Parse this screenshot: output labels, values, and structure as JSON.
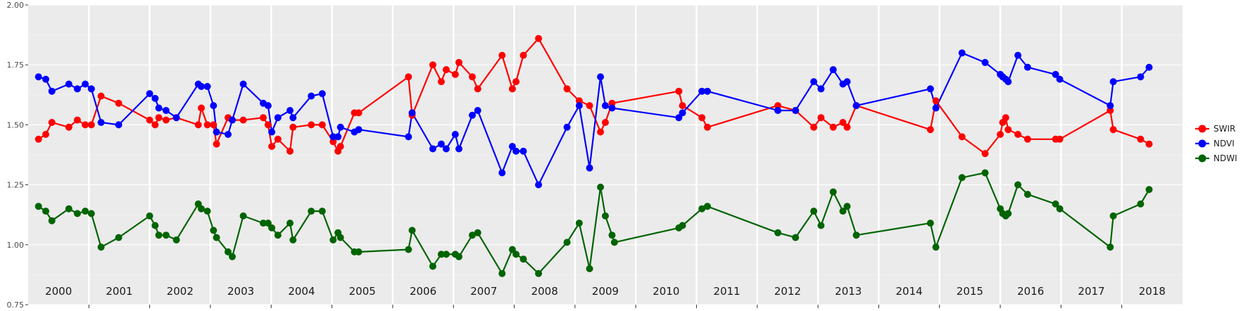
{
  "chart_data": {
    "type": "line",
    "title": "",
    "xlabel": "",
    "ylabel": "",
    "ylim": [
      0.75,
      2.0
    ],
    "xlim": [
      2000.0,
      2019.0
    ],
    "y_ticks": [
      "0.75",
      "1.00",
      "1.25",
      "1.50",
      "1.75",
      "2.00"
    ],
    "year_labels": [
      "2000",
      "2001",
      "2002",
      "2003",
      "2004",
      "2005",
      "2006",
      "2007",
      "2008",
      "2009",
      "2010",
      "2011",
      "2012",
      "2013",
      "2014",
      "2015",
      "2016",
      "2017",
      "2018"
    ],
    "grid": true,
    "panel_background": "#ebebeb",
    "legend_position": "right",
    "series": [
      {
        "name": "SWIR",
        "color": "#ff0000",
        "points": [
          [
            2000.17,
            1.44
          ],
          [
            2000.29,
            1.46
          ],
          [
            2000.39,
            1.51
          ],
          [
            2000.67,
            1.49
          ],
          [
            2000.81,
            1.52
          ],
          [
            2000.94,
            1.5
          ],
          [
            2001.04,
            1.5
          ],
          [
            2001.2,
            1.62
          ],
          [
            2001.49,
            1.59
          ],
          [
            2002.0,
            1.52
          ],
          [
            2002.09,
            1.5
          ],
          [
            2002.15,
            1.53
          ],
          [
            2002.27,
            1.52
          ],
          [
            2002.44,
            1.53
          ],
          [
            2002.8,
            1.5
          ],
          [
            2002.85,
            1.57
          ],
          [
            2002.95,
            1.5
          ],
          [
            2003.05,
            1.5
          ],
          [
            2003.1,
            1.42
          ],
          [
            2003.29,
            1.53
          ],
          [
            2003.36,
            1.52
          ],
          [
            2003.54,
            1.52
          ],
          [
            2003.87,
            1.53
          ],
          [
            2003.95,
            1.5
          ],
          [
            2004.01,
            1.41
          ],
          [
            2004.11,
            1.44
          ],
          [
            2004.31,
            1.39
          ],
          [
            2004.36,
            1.49
          ],
          [
            2004.66,
            1.5
          ],
          [
            2004.84,
            1.5
          ],
          [
            2005.02,
            1.43
          ],
          [
            2005.1,
            1.39
          ],
          [
            2005.14,
            1.41
          ],
          [
            2005.37,
            1.55
          ],
          [
            2005.44,
            1.55
          ],
          [
            2006.26,
            1.7
          ],
          [
            2006.32,
            1.54
          ],
          [
            2006.66,
            1.75
          ],
          [
            2006.8,
            1.68
          ],
          [
            2006.88,
            1.73
          ],
          [
            2007.03,
            1.71
          ],
          [
            2007.09,
            1.76
          ],
          [
            2007.31,
            1.7
          ],
          [
            2007.4,
            1.65
          ],
          [
            2007.8,
            1.79
          ],
          [
            2007.97,
            1.65
          ],
          [
            2008.03,
            1.68
          ],
          [
            2008.15,
            1.79
          ],
          [
            2008.4,
            1.86
          ],
          [
            2008.87,
            1.65
          ],
          [
            2009.07,
            1.6
          ],
          [
            2009.24,
            1.58
          ],
          [
            2009.42,
            1.47
          ],
          [
            2009.5,
            1.51
          ],
          [
            2009.61,
            1.59
          ],
          [
            2010.71,
            1.64
          ],
          [
            2010.77,
            1.58
          ],
          [
            2011.09,
            1.53
          ],
          [
            2011.18,
            1.49
          ],
          [
            2012.34,
            1.58
          ],
          [
            2012.63,
            1.56
          ],
          [
            2012.93,
            1.49
          ],
          [
            2013.05,
            1.53
          ],
          [
            2013.25,
            1.49
          ],
          [
            2013.41,
            1.51
          ],
          [
            2013.48,
            1.49
          ],
          [
            2013.63,
            1.58
          ],
          [
            2014.85,
            1.48
          ],
          [
            2014.94,
            1.6
          ],
          [
            2015.37,
            1.45
          ],
          [
            2015.75,
            1.38
          ],
          [
            2016.0,
            1.46
          ],
          [
            2016.04,
            1.51
          ],
          [
            2016.09,
            1.53
          ],
          [
            2016.13,
            1.48
          ],
          [
            2016.29,
            1.46
          ],
          [
            2016.45,
            1.44
          ],
          [
            2016.91,
            1.44
          ],
          [
            2016.98,
            1.44
          ],
          [
            2017.81,
            1.56
          ],
          [
            2017.86,
            1.48
          ],
          [
            2018.31,
            1.44
          ],
          [
            2018.45,
            1.42
          ]
        ]
      },
      {
        "name": "NDVI",
        "color": "#0000ff",
        "points": [
          [
            2000.17,
            1.7
          ],
          [
            2000.29,
            1.69
          ],
          [
            2000.39,
            1.64
          ],
          [
            2000.67,
            1.67
          ],
          [
            2000.81,
            1.65
          ],
          [
            2000.94,
            1.67
          ],
          [
            2001.04,
            1.65
          ],
          [
            2001.2,
            1.51
          ],
          [
            2001.49,
            1.5
          ],
          [
            2002.0,
            1.63
          ],
          [
            2002.09,
            1.61
          ],
          [
            2002.15,
            1.57
          ],
          [
            2002.27,
            1.56
          ],
          [
            2002.44,
            1.53
          ],
          [
            2002.8,
            1.67
          ],
          [
            2002.85,
            1.66
          ],
          [
            2002.95,
            1.66
          ],
          [
            2003.05,
            1.58
          ],
          [
            2003.1,
            1.47
          ],
          [
            2003.29,
            1.46
          ],
          [
            2003.36,
            1.52
          ],
          [
            2003.54,
            1.67
          ],
          [
            2003.87,
            1.59
          ],
          [
            2003.95,
            1.58
          ],
          [
            2004.01,
            1.47
          ],
          [
            2004.11,
            1.53
          ],
          [
            2004.31,
            1.56
          ],
          [
            2004.36,
            1.53
          ],
          [
            2004.66,
            1.62
          ],
          [
            2004.84,
            1.63
          ],
          [
            2005.02,
            1.45
          ],
          [
            2005.1,
            1.45
          ],
          [
            2005.14,
            1.49
          ],
          [
            2005.37,
            1.47
          ],
          [
            2005.44,
            1.48
          ],
          [
            2006.26,
            1.45
          ],
          [
            2006.32,
            1.55
          ],
          [
            2006.66,
            1.4
          ],
          [
            2006.8,
            1.42
          ],
          [
            2006.88,
            1.4
          ],
          [
            2007.03,
            1.46
          ],
          [
            2007.09,
            1.4
          ],
          [
            2007.31,
            1.54
          ],
          [
            2007.4,
            1.56
          ],
          [
            2007.8,
            1.3
          ],
          [
            2007.97,
            1.41
          ],
          [
            2008.03,
            1.39
          ],
          [
            2008.15,
            1.39
          ],
          [
            2008.4,
            1.25
          ],
          [
            2008.87,
            1.49
          ],
          [
            2009.07,
            1.58
          ],
          [
            2009.24,
            1.32
          ],
          [
            2009.42,
            1.7
          ],
          [
            2009.5,
            1.58
          ],
          [
            2009.61,
            1.57
          ],
          [
            2010.71,
            1.53
          ],
          [
            2010.77,
            1.55
          ],
          [
            2011.09,
            1.64
          ],
          [
            2011.18,
            1.64
          ],
          [
            2012.34,
            1.56
          ],
          [
            2012.63,
            1.56
          ],
          [
            2012.93,
            1.68
          ],
          [
            2013.05,
            1.65
          ],
          [
            2013.25,
            1.73
          ],
          [
            2013.41,
            1.67
          ],
          [
            2013.48,
            1.68
          ],
          [
            2013.63,
            1.58
          ],
          [
            2014.85,
            1.65
          ],
          [
            2014.94,
            1.57
          ],
          [
            2015.37,
            1.8
          ],
          [
            2015.75,
            1.76
          ],
          [
            2016.0,
            1.71
          ],
          [
            2016.04,
            1.7
          ],
          [
            2016.09,
            1.69
          ],
          [
            2016.13,
            1.68
          ],
          [
            2016.29,
            1.79
          ],
          [
            2016.45,
            1.74
          ],
          [
            2016.91,
            1.71
          ],
          [
            2016.98,
            1.69
          ],
          [
            2017.81,
            1.58
          ],
          [
            2017.86,
            1.68
          ],
          [
            2018.31,
            1.7
          ],
          [
            2018.45,
            1.74
          ]
        ]
      },
      {
        "name": "NDWI",
        "color": "#006400",
        "points": [
          [
            2000.17,
            1.16
          ],
          [
            2000.29,
            1.14
          ],
          [
            2000.39,
            1.1
          ],
          [
            2000.67,
            1.15
          ],
          [
            2000.81,
            1.13
          ],
          [
            2000.94,
            1.14
          ],
          [
            2001.04,
            1.13
          ],
          [
            2001.2,
            0.99
          ],
          [
            2001.49,
            1.03
          ],
          [
            2002.0,
            1.12
          ],
          [
            2002.09,
            1.08
          ],
          [
            2002.15,
            1.04
          ],
          [
            2002.27,
            1.04
          ],
          [
            2002.44,
            1.02
          ],
          [
            2002.8,
            1.17
          ],
          [
            2002.85,
            1.15
          ],
          [
            2002.95,
            1.14
          ],
          [
            2003.05,
            1.06
          ],
          [
            2003.1,
            1.03
          ],
          [
            2003.29,
            0.97
          ],
          [
            2003.36,
            0.95
          ],
          [
            2003.54,
            1.12
          ],
          [
            2003.87,
            1.09
          ],
          [
            2003.95,
            1.09
          ],
          [
            2004.01,
            1.07
          ],
          [
            2004.11,
            1.04
          ],
          [
            2004.31,
            1.09
          ],
          [
            2004.36,
            1.02
          ],
          [
            2004.66,
            1.14
          ],
          [
            2004.84,
            1.14
          ],
          [
            2005.02,
            1.02
          ],
          [
            2005.1,
            1.05
          ],
          [
            2005.14,
            1.03
          ],
          [
            2005.37,
            0.97
          ],
          [
            2005.44,
            0.97
          ],
          [
            2006.26,
            0.98
          ],
          [
            2006.32,
            1.06
          ],
          [
            2006.66,
            0.91
          ],
          [
            2006.8,
            0.96
          ],
          [
            2006.88,
            0.96
          ],
          [
            2007.03,
            0.96
          ],
          [
            2007.09,
            0.95
          ],
          [
            2007.31,
            1.04
          ],
          [
            2007.4,
            1.05
          ],
          [
            2007.8,
            0.88
          ],
          [
            2007.97,
            0.98
          ],
          [
            2008.03,
            0.96
          ],
          [
            2008.15,
            0.94
          ],
          [
            2008.4,
            0.88
          ],
          [
            2008.87,
            1.01
          ],
          [
            2009.07,
            1.09
          ],
          [
            2009.24,
            0.9
          ],
          [
            2009.42,
            1.24
          ],
          [
            2009.5,
            1.12
          ],
          [
            2009.61,
            1.04
          ],
          [
            2009.65,
            1.01
          ],
          [
            2010.71,
            1.07
          ],
          [
            2010.77,
            1.08
          ],
          [
            2011.09,
            1.15
          ],
          [
            2011.18,
            1.16
          ],
          [
            2012.34,
            1.05
          ],
          [
            2012.63,
            1.03
          ],
          [
            2012.93,
            1.14
          ],
          [
            2013.05,
            1.08
          ],
          [
            2013.25,
            1.22
          ],
          [
            2013.41,
            1.14
          ],
          [
            2013.48,
            1.16
          ],
          [
            2013.63,
            1.04
          ],
          [
            2014.85,
            1.09
          ],
          [
            2014.94,
            0.99
          ],
          [
            2015.37,
            1.28
          ],
          [
            2015.75,
            1.3
          ],
          [
            2016.0,
            1.15
          ],
          [
            2016.04,
            1.13
          ],
          [
            2016.09,
            1.12
          ],
          [
            2016.13,
            1.13
          ],
          [
            2016.29,
            1.25
          ],
          [
            2016.45,
            1.21
          ],
          [
            2016.91,
            1.17
          ],
          [
            2016.98,
            1.15
          ],
          [
            2017.81,
            0.99
          ],
          [
            2017.86,
            1.12
          ],
          [
            2018.31,
            1.17
          ],
          [
            2018.45,
            1.23
          ]
        ]
      }
    ]
  }
}
